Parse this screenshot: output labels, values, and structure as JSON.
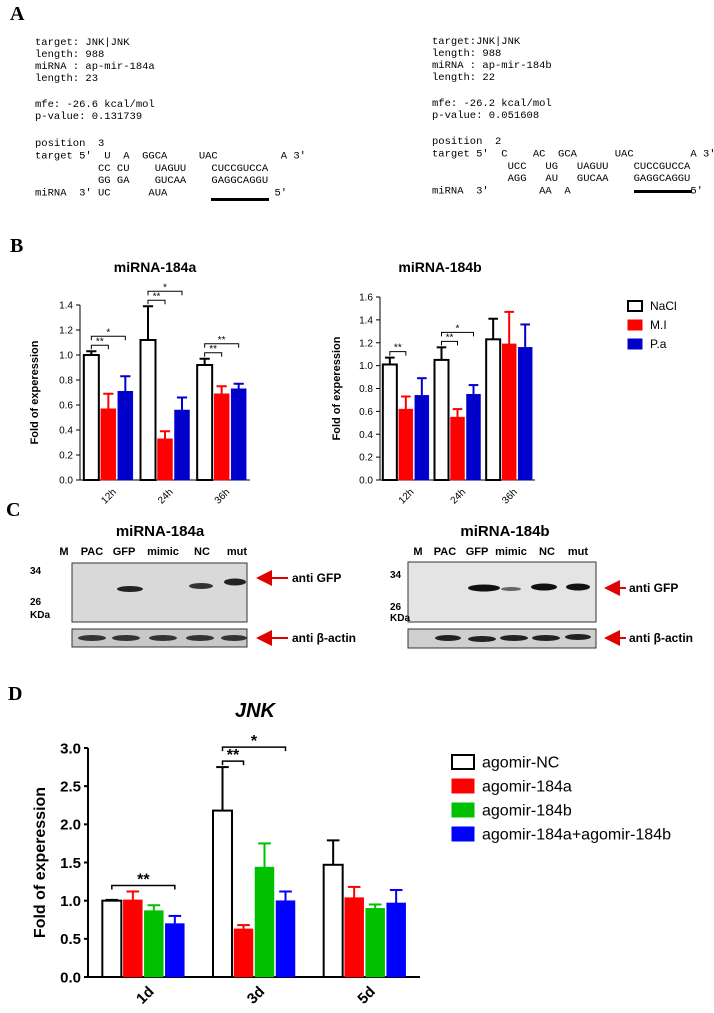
{
  "panel_labels": [
    "A",
    "B",
    "C",
    "D"
  ],
  "alignments": [
    {
      "header": [
        "target: JNK|JNK",
        "length: 988",
        "miRNA : ap-mir-184a",
        "length: 23"
      ],
      "energy": [
        "mfe: -26.6 kcal/mol",
        "p-value: 0.131739"
      ],
      "duplex": [
        "position  3",
        "target 5'  U  A  GGCA     UAC          A 3'",
        "          CC CU    UAGUU    CUCCGUCCA",
        "          GG GA    GUCAA    GAGGCAGGU",
        "miRNA  3' UC      AUA                 5'"
      ]
    },
    {
      "header": [
        "target:JNK|JNK",
        "length: 988",
        "miRNA : ap-mir-184b",
        "length: 22"
      ],
      "energy": [
        "mfe: -26.2 kcal/mol",
        "p-value: 0.051608"
      ],
      "duplex": [
        "position  2",
        "target 5'  C    AC  GCA      UAC         A 3'",
        "            UCC   UG   UAGUU    CUCCGUCCA",
        "            AGG   AU   GUCAA    GAGGCAGGU",
        "miRNA  3'        AA  A                   5'"
      ]
    }
  ],
  "chart_data": [
    {
      "type": "bar",
      "title": "miRNA-184a",
      "y_label": "Fold of experession",
      "categories": [
        "12h",
        "24h",
        "36h"
      ],
      "series": [
        {
          "name": "NaCl",
          "color": "#ffffff",
          "edgecolor": "#000000",
          "values": [
            1.0,
            1.12,
            0.92
          ],
          "errors": [
            0.03,
            0.27,
            0.05
          ]
        },
        {
          "name": "M.I",
          "color": "#ff0000",
          "values": [
            0.57,
            0.33,
            0.69
          ],
          "errors": [
            0.12,
            0.06,
            0.06
          ]
        },
        {
          "name": "P.a",
          "color": "#0000cc",
          "values": [
            0.71,
            0.56,
            0.73
          ],
          "errors": [
            0.12,
            0.1,
            0.04
          ]
        }
      ],
      "ylim": [
        0,
        1.4
      ],
      "yticks": [
        {
          "value": 0,
          "label": "0.0"
        },
        0.2,
        0.4,
        0.6,
        0.8,
        {
          "value": 1,
          "label": "1.0"
        },
        1.2,
        1.4
      ],
      "significance": [
        {
          "category": "12h",
          "from": "NaCl",
          "to": "M.I",
          "label": "**"
        },
        {
          "category": "12h",
          "from": "NaCl",
          "to": "P.a",
          "label": "*"
        },
        {
          "category": "24h",
          "from": "NaCl",
          "to": "M.I",
          "label": "**"
        },
        {
          "category": "24h",
          "from": "NaCl",
          "to": "P.a",
          "label": "*"
        },
        {
          "category": "36h",
          "from": "NaCl",
          "to": "M.I",
          "label": "**"
        },
        {
          "category": "36h",
          "from": "NaCl",
          "to": "P.a",
          "label": "**"
        }
      ],
      "legend": false
    },
    {
      "type": "bar",
      "title": "miRNA-184b",
      "y_label": "Fold of experession",
      "categories": [
        "12h",
        "24h",
        "36h"
      ],
      "series": [
        {
          "name": "NaCl",
          "color": "#ffffff",
          "edgecolor": "#000000",
          "values": [
            1.01,
            1.05,
            1.23
          ],
          "errors": [
            0.06,
            0.11,
            0.18
          ]
        },
        {
          "name": "M.I",
          "color": "#ff0000",
          "values": [
            0.62,
            0.55,
            1.19
          ],
          "errors": [
            0.11,
            0.07,
            0.28
          ]
        },
        {
          "name": "P.a",
          "color": "#0000cc",
          "values": [
            0.74,
            0.75,
            1.16
          ],
          "errors": [
            0.15,
            0.08,
            0.2
          ]
        }
      ],
      "ylim": [
        0,
        1.6
      ],
      "yticks": [
        {
          "value": 0,
          "label": "0.0"
        },
        0.2,
        0.4,
        0.6,
        0.8,
        {
          "value": 1,
          "label": "1.0"
        },
        1.2,
        1.4,
        1.6
      ],
      "significance": [
        {
          "category": "12h",
          "from": "NaCl",
          "to": "M.I",
          "label": "**"
        },
        {
          "category": "24h",
          "from": "NaCl",
          "to": "M.I",
          "label": "**"
        },
        {
          "category": "24h",
          "from": "NaCl",
          "to": "P.a",
          "label": "*"
        }
      ],
      "legend": true
    },
    {
      "type": "bar",
      "title": "JNK",
      "y_label": "Fold of experession",
      "categories": [
        "1d",
        "3d",
        "5d"
      ],
      "series": [
        {
          "name": "agomir-NC",
          "color": "#ffffff",
          "edgecolor": "#000000",
          "values": [
            1.0,
            2.18,
            1.47
          ],
          "errors": [
            0.01,
            0.57,
            0.32
          ]
        },
        {
          "name": "agomir-184a",
          "color": "#ff0000",
          "values": [
            1.01,
            0.63,
            1.04
          ],
          "errors": [
            0.11,
            0.05,
            0.14
          ]
        },
        {
          "name": "agomir-184b",
          "color": "#00c000",
          "values": [
            0.87,
            1.44,
            0.9
          ],
          "errors": [
            0.07,
            0.31,
            0.05
          ]
        },
        {
          "name": "agomir-184a+agomir-184b",
          "color": "#0000ff",
          "values": [
            0.7,
            1.0,
            0.97
          ],
          "errors": [
            0.1,
            0.12,
            0.17
          ]
        }
      ],
      "ylim": [
        0,
        3
      ],
      "yticks": [
        {
          "value": 0,
          "label": "0.0"
        },
        0.5,
        {
          "value": 1,
          "label": "1.0"
        },
        1.5,
        {
          "value": 2,
          "label": "2.0"
        },
        2.5,
        {
          "value": 3,
          "label": "3.0"
        }
      ],
      "significance": [
        {
          "category": "1d",
          "from": "agomir-NC",
          "to": "agomir-184a+agomir-184b",
          "label": "**"
        },
        {
          "category": "3d",
          "from": "agomir-NC",
          "to": "agomir-184a",
          "label": "**"
        },
        {
          "category": "3d",
          "from": "agomir-NC",
          "to": "agomir-184a+agomir-184b",
          "label": "*"
        }
      ],
      "legend": true
    }
  ],
  "blots": [
    {
      "title": "miRNA-184a",
      "lanes": [
        "M",
        "PAC",
        "GFP",
        "mimic",
        "NC",
        "mut"
      ],
      "markers": [
        "34",
        "26"
      ],
      "unit": "KDa",
      "probes": [
        "anti GFP",
        "anti β-actin"
      ]
    },
    {
      "title": "miRNA-184b",
      "lanes": [
        "M",
        "PAC",
        "GFP",
        "mimic",
        "NC",
        "mut"
      ],
      "markers": [
        "34",
        "26"
      ],
      "unit": "KDa",
      "probes": [
        "anti GFP",
        "anti β-actin"
      ]
    }
  ]
}
